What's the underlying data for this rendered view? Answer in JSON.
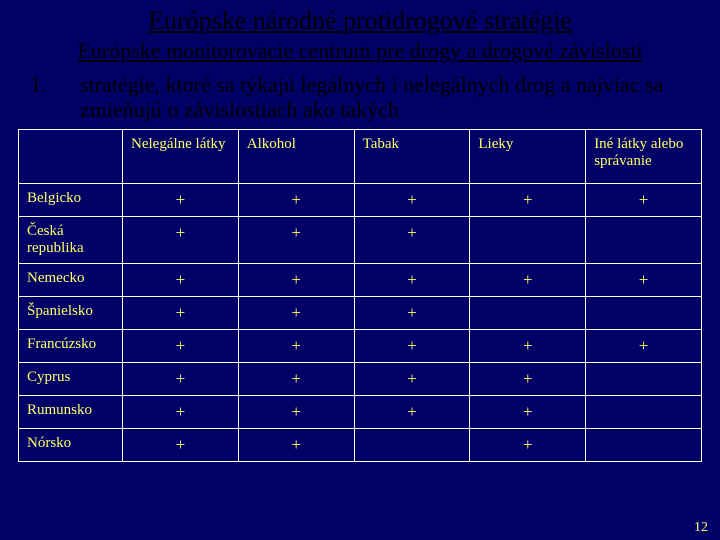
{
  "title": "Európske národné protidrogové stratégie",
  "subtitle": "Európske monitorovacie centrum pre drogy a drogové závislosti",
  "point_num": "1.",
  "point_text": "stratégie, ktoré sa týkajú legálnych i nelegálnych drog a najviac sa zmieňujú o závislostiach ako takých",
  "columns": [
    "",
    "Nelegálne látky",
    "Alkohol",
    "Tabak",
    "Lieky",
    "Iné látky alebo správanie"
  ],
  "rows": [
    {
      "label": "Belgicko",
      "cells": [
        "+",
        "+",
        "+",
        "+",
        "+"
      ]
    },
    {
      "label": "Česká republika",
      "cells": [
        "+",
        "+",
        "+",
        "",
        ""
      ]
    },
    {
      "label": "Nemecko",
      "cells": [
        "+",
        "+",
        "+",
        "+",
        "+"
      ]
    },
    {
      "label": "Španielsko",
      "cells": [
        "+",
        "+",
        "+",
        "",
        ""
      ]
    },
    {
      "label": "Francúzsko",
      "cells": [
        "+",
        "+",
        "+",
        "+",
        "+"
      ]
    },
    {
      "label": "Cyprus",
      "cells": [
        "+",
        "+",
        "+",
        "+",
        ""
      ]
    },
    {
      "label": "Rumunsko",
      "cells": [
        "+",
        "+",
        "+",
        "+",
        ""
      ]
    },
    {
      "label": "Nórsko",
      "cells": [
        "+",
        "+",
        "",
        "+",
        ""
      ]
    }
  ],
  "page_number": "12",
  "colors": {
    "background": "#000066",
    "heading_text": "#000000",
    "table_text": "#ffff66",
    "border": "#ffffff"
  }
}
